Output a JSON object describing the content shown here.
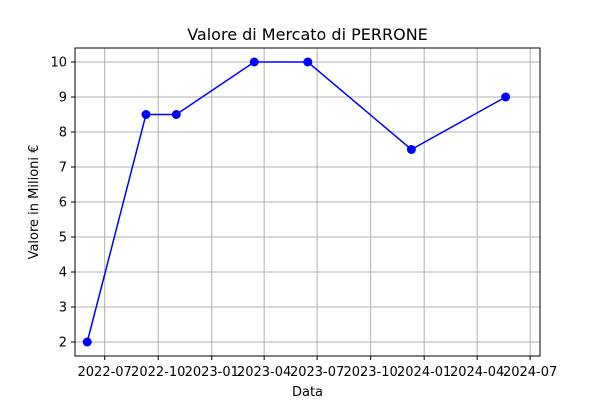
{
  "chart_data": {
    "type": "line",
    "title": "Valore di Mercato di PERRONE",
    "xlabel": "Data",
    "ylabel": "Valore in Milioni €",
    "x_ticks": [
      "2022-07",
      "2022-10",
      "2023-01",
      "2023-04",
      "2023-07",
      "2023-10",
      "2024-01",
      "2024-04",
      "2024-07"
    ],
    "y_ticks": [
      2,
      3,
      4,
      5,
      6,
      7,
      8,
      9,
      10
    ],
    "xlim": [
      "2022-05-11",
      "2024-07-18"
    ],
    "ylim": [
      1.6,
      10.4
    ],
    "grid": true,
    "series": [
      {
        "color": "#0000ff",
        "marker": "circle",
        "points": [
          {
            "x": "2022-06-01",
            "y": 2
          },
          {
            "x": "2022-09-10",
            "y": 8.5
          },
          {
            "x": "2022-11-01",
            "y": 8.5
          },
          {
            "x": "2023-03-15",
            "y": 10
          },
          {
            "x": "2023-06-15",
            "y": 10
          },
          {
            "x": "2023-12-10",
            "y": 7.5
          },
          {
            "x": "2024-05-20",
            "y": 9
          }
        ]
      }
    ]
  }
}
